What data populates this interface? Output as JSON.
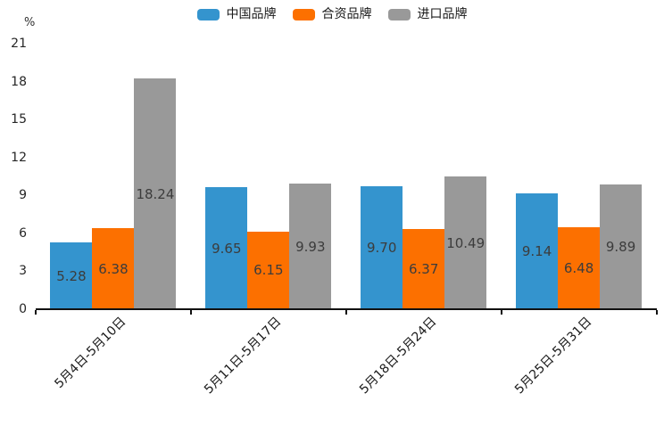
{
  "chart_data": {
    "type": "bar",
    "title": "",
    "unit_label": "%",
    "categories": [
      "5月4日-5月10日",
      "5月11日-5月17日",
      "5月18日-5月24日",
      "5月25日-5月31日"
    ],
    "series": [
      {
        "name": "中国品牌",
        "color": "#3494CE",
        "values": [
          5.28,
          9.65,
          9.7,
          9.14
        ]
      },
      {
        "name": "合资品牌",
        "color": "#FC7000",
        "values": [
          6.38,
          6.15,
          6.37,
          6.48
        ]
      },
      {
        "name": "进口品牌",
        "color": "#999999",
        "values": [
          18.24,
          9.93,
          10.49,
          9.89
        ]
      }
    ],
    "value_labels_shown": true,
    "value_label_decimals": 2,
    "ylim": [
      0,
      21
    ],
    "ytick_step": 3,
    "grid": false,
    "legend_position": "top-center",
    "colors": {
      "axis_line": "#111111",
      "y_tick_label": "#262626",
      "x_tick_label": "#1a1a1a",
      "value_label": "#3c3c3c",
      "background": "#ffffff"
    }
  }
}
